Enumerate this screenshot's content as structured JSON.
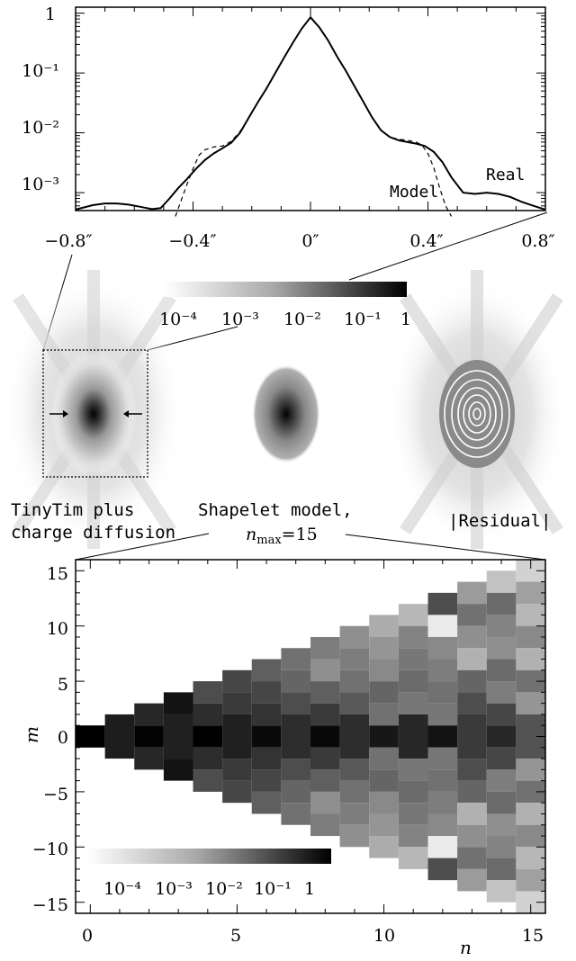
{
  "profile_chart": {
    "type": "line",
    "x_tick_labels": [
      "−0.8″",
      "−0.4″",
      "0″",
      "0.4″",
      "0.8″"
    ],
    "y_tick_labels": [
      "1",
      "10⁻¹",
      "10⁻²",
      "10⁻³"
    ],
    "xlim": [
      -0.8,
      0.8
    ],
    "ylim_log10": [
      -3.3,
      0.1
    ],
    "series": [
      {
        "name": "Real",
        "style": "solid",
        "x": [
          -0.8,
          -0.74,
          -0.7,
          -0.66,
          -0.62,
          -0.58,
          -0.54,
          -0.51,
          -0.48,
          -0.45,
          -0.42,
          -0.39,
          -0.36,
          -0.33,
          -0.3,
          -0.27,
          -0.24,
          -0.21,
          -0.18,
          -0.15,
          -0.12,
          -0.09,
          -0.06,
          -0.03,
          0,
          0.03,
          0.06,
          0.09,
          0.12,
          0.15,
          0.18,
          0.21,
          0.24,
          0.27,
          0.3,
          0.33,
          0.36,
          0.39,
          0.42,
          0.45,
          0.48,
          0.52,
          0.56,
          0.6,
          0.64,
          0.68,
          0.72,
          0.76,
          0.8
        ],
        "y": [
          0.00052,
          0.00062,
          0.00066,
          0.00066,
          0.00063,
          0.00058,
          0.00053,
          0.00055,
          0.0008,
          0.0012,
          0.0017,
          0.0025,
          0.0035,
          0.0045,
          0.0055,
          0.0068,
          0.01,
          0.018,
          0.032,
          0.055,
          0.1,
          0.18,
          0.32,
          0.55,
          0.85,
          0.58,
          0.35,
          0.19,
          0.11,
          0.06,
          0.033,
          0.018,
          0.011,
          0.0085,
          0.0075,
          0.007,
          0.0066,
          0.006,
          0.0048,
          0.0032,
          0.0018,
          0.001,
          0.00095,
          0.001,
          0.00095,
          0.00085,
          0.0007,
          0.0006,
          0.00052
        ]
      },
      {
        "name": "Model",
        "style": "dashed",
        "x": [
          -0.46,
          -0.44,
          -0.42,
          -0.4,
          -0.38,
          -0.36,
          -0.33,
          -0.3,
          -0.27,
          -0.24,
          -0.21,
          -0.18,
          -0.15,
          -0.12,
          -0.09,
          -0.06,
          -0.03,
          0,
          0.03,
          0.06,
          0.09,
          0.12,
          0.15,
          0.18,
          0.21,
          0.24,
          0.27,
          0.3,
          0.33,
          0.36,
          0.38,
          0.4,
          0.42,
          0.44,
          0.46,
          0.48
        ],
        "y": [
          0.0004,
          0.00075,
          0.0014,
          0.0025,
          0.0042,
          0.0052,
          0.0058,
          0.006,
          0.0072,
          0.0105,
          0.018,
          0.032,
          0.055,
          0.1,
          0.18,
          0.32,
          0.55,
          0.87,
          0.58,
          0.35,
          0.19,
          0.11,
          0.06,
          0.033,
          0.018,
          0.011,
          0.0085,
          0.0078,
          0.0075,
          0.007,
          0.0062,
          0.0045,
          0.0026,
          0.0012,
          0.0006,
          0.0004
        ]
      }
    ]
  },
  "panels": {
    "colorbar_tick_labels": [
      "10⁻⁴",
      "10⁻³",
      "10⁻²",
      "10⁻¹",
      "1"
    ],
    "left_caption_line1": "TinyTim plus",
    "left_caption_line2": "charge diffusion",
    "middle_caption_line1": "Shapelet model,",
    "middle_caption_n": "n",
    "middle_caption_sub": "max",
    "middle_caption_value": "=15",
    "right_caption": "|Residual|"
  },
  "coefficient_chart": {
    "type": "heatmap",
    "x_tick_labels": [
      "0",
      "5",
      "10",
      "15"
    ],
    "y_tick_labels": [
      "15",
      "10",
      "5",
      "0",
      "−5",
      "−10",
      "−15"
    ],
    "xlabel": "n",
    "ylabel": "m",
    "xlim": [
      -0.5,
      15.5
    ],
    "ylim": [
      -16,
      16
    ],
    "colorbar_tick_labels": [
      "10⁻⁴",
      "10⁻³",
      "10⁻²",
      "10⁻¹",
      "1"
    ],
    "columns": [
      {
        "n": 0,
        "log10_values": [
          0
        ]
      },
      {
        "n": 1,
        "log10_values": [
          -0.45,
          -0.45
        ]
      },
      {
        "n": 2,
        "log10_values": [
          -0.6,
          -0.05,
          -0.6
        ]
      },
      {
        "n": 3,
        "log10_values": [
          -0.3,
          -0.5,
          -0.5,
          -0.3
        ]
      },
      {
        "n": 4,
        "log10_values": [
          -1.2,
          -0.7,
          -0.02,
          -0.7,
          -1.2
        ]
      },
      {
        "n": 5,
        "log10_values": [
          -1.1,
          -0.9,
          -0.5,
          -0.5,
          -0.9,
          -1.1
        ]
      },
      {
        "n": 6,
        "log10_values": [
          -1.5,
          -1.1,
          -0.8,
          -0.15,
          -0.8,
          -1.1,
          -1.5
        ]
      },
      {
        "n": 7,
        "log10_values": [
          -1.8,
          -1.6,
          -1.2,
          -0.7,
          -0.7,
          -1.2,
          -1.6,
          -1.8
        ]
      },
      {
        "n": 8,
        "log10_values": [
          -2.0,
          -2.3,
          -1.5,
          -0.9,
          -0.12,
          -0.9,
          -1.5,
          -2.3,
          -2.0
        ]
      },
      {
        "n": 9,
        "log10_values": [
          -2.3,
          -2.0,
          -1.8,
          -1.4,
          -0.7,
          -0.7,
          -1.4,
          -1.8,
          -2.0,
          -2.3
        ]
      },
      {
        "n": 10,
        "log10_values": [
          -2.8,
          -2.4,
          -2.2,
          -1.6,
          -1.8,
          -0.35,
          -1.8,
          -1.6,
          -2.2,
          -2.4,
          -2.8
        ]
      },
      {
        "n": 11,
        "log10_values": [
          -3.0,
          -2.1,
          -1.9,
          -1.7,
          -1.9,
          -0.6,
          -0.6,
          -1.9,
          -1.7,
          -1.9,
          -2.1,
          -3.0
        ]
      },
      {
        "n": 12,
        "log10_values": [
          -1.2,
          -4.0,
          -2.2,
          -2.0,
          -1.8,
          -1.9,
          -0.3,
          -1.9,
          -1.8,
          -2.0,
          -2.2,
          -4.0,
          -1.2
        ]
      },
      {
        "n": 13,
        "log10_values": [
          -2.5,
          -1.8,
          -2.3,
          -2.9,
          -1.6,
          -1.2,
          -0.9,
          -0.9,
          -1.2,
          -1.6,
          -2.9,
          -2.3,
          -1.8,
          -2.5
        ]
      },
      {
        "n": 14,
        "log10_values": [
          -3.2,
          -1.7,
          -2.1,
          -2.3,
          -1.7,
          -2.0,
          -1.1,
          -0.6,
          -1.1,
          -2.0,
          -1.7,
          -2.3,
          -2.1,
          -1.7,
          -3.2
        ]
      },
      {
        "n": 15,
        "log10_values": [
          -3.5,
          -2.6,
          -3.0,
          -2.2,
          -2.9,
          -1.8,
          -2.4,
          -1.3,
          -1.3,
          -2.4,
          -1.8,
          -2.9,
          -2.2,
          -3.0,
          -2.6,
          -3.5
        ]
      }
    ]
  }
}
